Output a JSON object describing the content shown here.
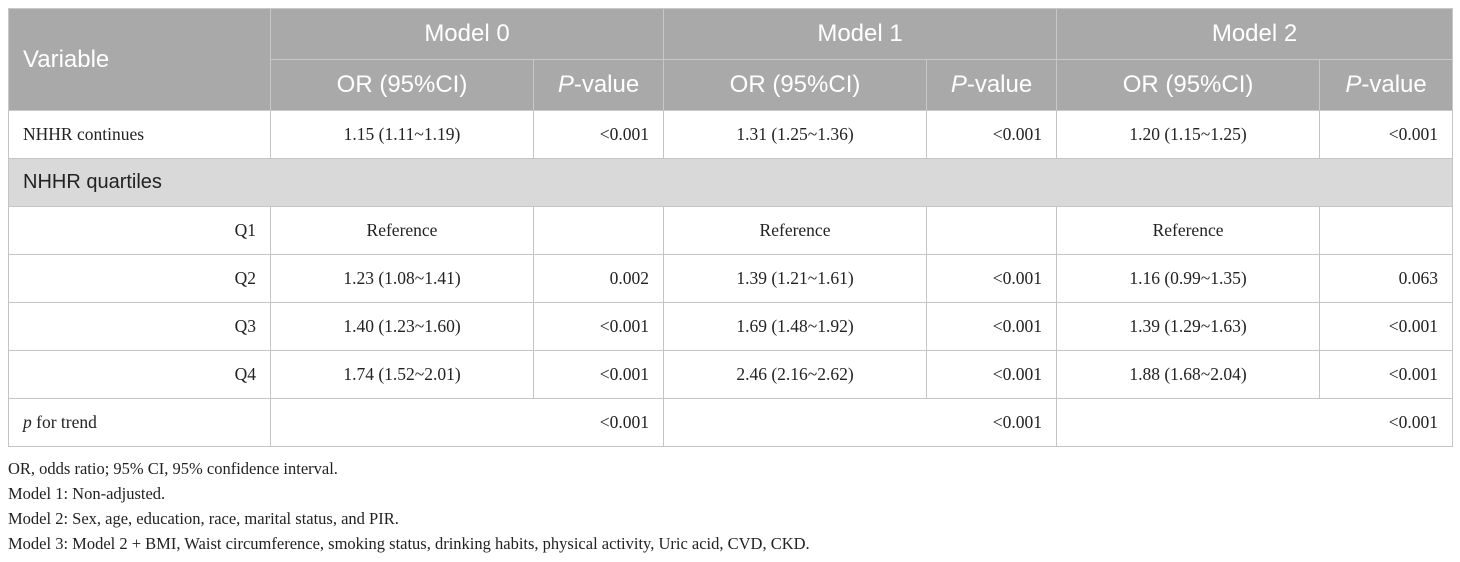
{
  "table": {
    "header": {
      "variable": "Variable",
      "models": [
        "Model 0",
        "Model 1",
        "Model 2"
      ],
      "subheaders": [
        "OR (95%CI)",
        "P-value"
      ]
    },
    "rows": [
      {
        "label": "NHHR continues",
        "or": [
          "1.15 (1.11~1.19)",
          "1.31 (1.25~1.36)",
          "1.20 (1.15~1.25)"
        ],
        "p": [
          "<0.001",
          "<0.001",
          "<0.001"
        ]
      }
    ],
    "section": "NHHR quartiles",
    "quartiles": [
      {
        "label": "Q1",
        "or": [
          "Reference",
          "Reference",
          "Reference"
        ]
      },
      {
        "label": "Q2",
        "or": [
          "1.23 (1.08~1.41)",
          "1.39 (1.21~1.61)",
          "1.16 (0.99~1.35)"
        ],
        "p": [
          "0.002",
          "<0.001",
          "0.063"
        ]
      },
      {
        "label": "Q3",
        "or": [
          "1.40 (1.23~1.60)",
          "1.69 (1.48~1.92)",
          "1.39 (1.29~1.63)"
        ],
        "p": [
          "<0.001",
          "<0.001",
          "<0.001"
        ]
      },
      {
        "label": "Q4",
        "or": [
          "1.74 (1.52~2.01)",
          "2.46 (2.16~2.62)",
          "1.88 (1.68~2.04)"
        ],
        "p": [
          "<0.001",
          "<0.001",
          "<0.001"
        ]
      }
    ],
    "trend": {
      "label": "p for trend",
      "p": [
        "<0.001",
        "<0.001",
        "<0.001"
      ]
    }
  },
  "footnotes": [
    "OR, odds ratio; 95% CI, 95% confidence interval.",
    "Model 1: Non-adjusted.",
    "Model 2: Sex, age, education, race, marital status, and PIR.",
    "Model 3: Model 2 + BMI, Waist circumference, smoking status, drinking habits, physical activity, Uric acid, CVD, CKD."
  ]
}
